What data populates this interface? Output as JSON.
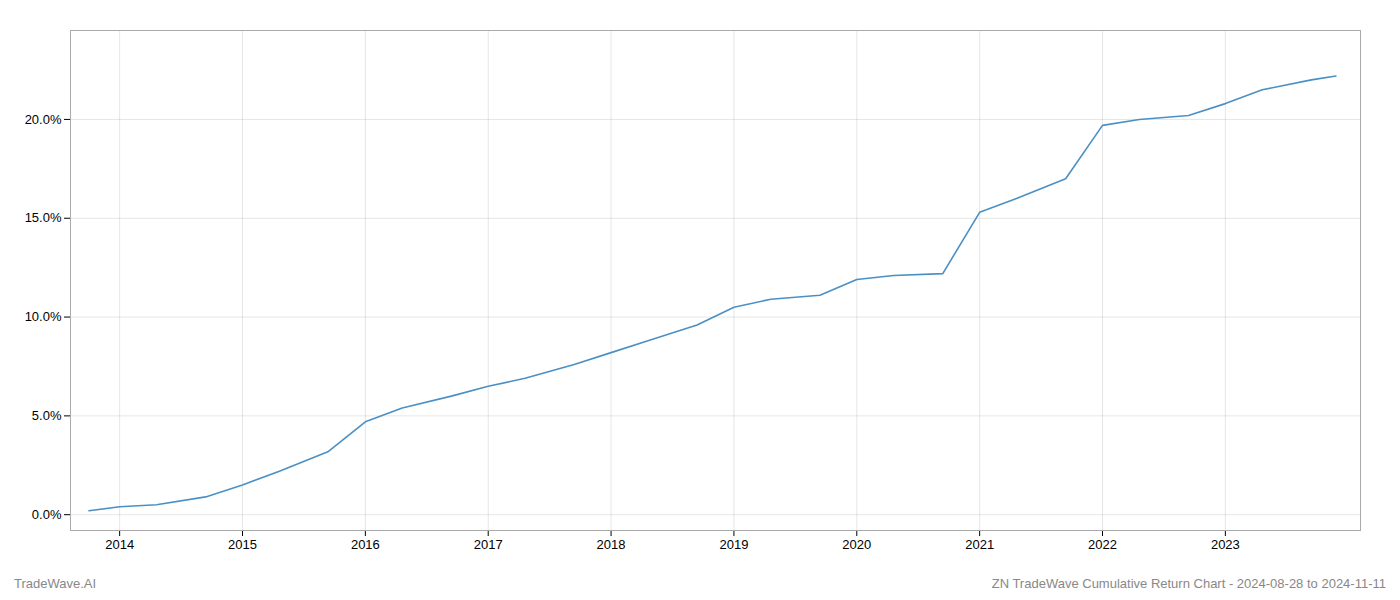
{
  "chart_data": {
    "type": "line",
    "title": "ZN TradeWave Cumulative Return Chart - 2024-08-28 to 2024-11-11",
    "annotations": [
      "TradeWave.AI"
    ],
    "x": [
      2013.75,
      2014.0,
      2014.3,
      2014.7,
      2015.0,
      2015.3,
      2015.7,
      2016.0,
      2016.3,
      2016.7,
      2017.0,
      2017.3,
      2017.7,
      2018.0,
      2018.3,
      2018.7,
      2019.0,
      2019.3,
      2019.5,
      2019.7,
      2020.0,
      2020.3,
      2020.7,
      2021.0,
      2021.3,
      2021.7,
      2022.0,
      2022.3,
      2022.7,
      2023.0,
      2023.3,
      2023.7,
      2023.9
    ],
    "values": [
      0.002,
      0.004,
      0.005,
      0.009,
      0.015,
      0.022,
      0.032,
      0.047,
      0.054,
      0.06,
      0.065,
      0.069,
      0.076,
      0.082,
      0.088,
      0.096,
      0.105,
      0.109,
      0.11,
      0.111,
      0.119,
      0.121,
      0.122,
      0.153,
      0.16,
      0.17,
      0.197,
      0.2,
      0.202,
      0.208,
      0.215,
      0.22,
      0.222
    ],
    "color": "#4a90c4",
    "xlim": [
      2013.6,
      2024.1
    ],
    "xticks": [
      2014,
      2015,
      2016,
      2017,
      2018,
      2019,
      2020,
      2021,
      2022,
      2023
    ],
    "ylim": [
      -0.008,
      0.245
    ],
    "yticks": [
      {
        "value": 0.0,
        "label": "0.0%"
      },
      {
        "value": 0.05,
        "label": "5.0%"
      },
      {
        "value": 0.1,
        "label": "10.0%"
      },
      {
        "value": 0.15,
        "label": "15.0%"
      },
      {
        "value": 0.2,
        "label": "20.0%"
      }
    ],
    "grid": true
  }
}
